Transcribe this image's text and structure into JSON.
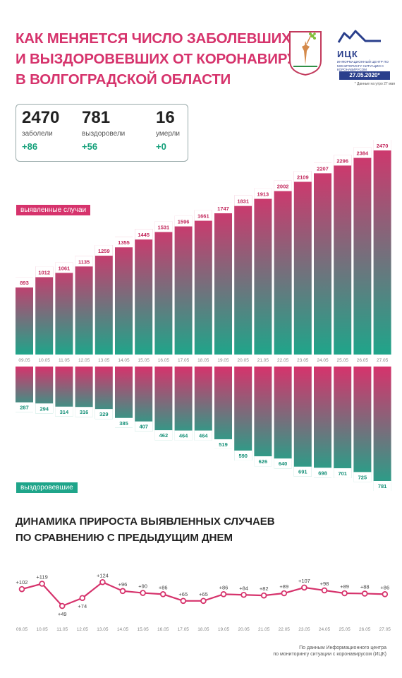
{
  "title_lines": [
    "КАК МЕНЯЕТСЯ ЧИСЛО ЗАБОЛЕВШИХ",
    "И ВЫЗДОРОВЕВШИХ ОТ КОРОНАВИРУСА",
    "В ВОЛГОГРАДСКОЙ ОБЛАСТИ"
  ],
  "logo": {
    "name": "ИЦК",
    "subtitle": "ИНФОРМАЦИОННЫЙ ЦЕНТР ПО МОНИТОРИНГУ СИТУАЦИИ С КОРОНАВИРУСОМ",
    "date": "27.05.2020*",
    "note": "* Данные на утро 27 мая"
  },
  "stats": [
    {
      "value": "2470",
      "label": "заболели",
      "delta": "+86"
    },
    {
      "value": "781",
      "label": "выздоровели",
      "delta": "+56"
    },
    {
      "value": "16",
      "label": "умерли",
      "delta": "+0"
    }
  ],
  "tags": {
    "cases": "выявленные случаи",
    "recovered": "выздоровевшие"
  },
  "chart2_title_lines": [
    "ДИНАМИКА ПРИРОСТА ВЫЯВЛЕННЫХ СЛУЧАЕВ",
    "ПО СРАВНЕНИЮ С ПРЕДЫДУЩИМ ДНЕМ"
  ],
  "source_lines": [
    "По данным Информационного центра",
    "по мониторингу ситуации с коронавирусом (ИЦК)"
  ],
  "colors": {
    "red": "#d6336c",
    "green": "#1fa58a",
    "line": "#d6336c",
    "dark": "#222222"
  },
  "chart_data": [
    {
      "type": "bar",
      "categories": [
        "09.05",
        "10.05",
        "11.05",
        "12.05",
        "13.05",
        "14.05",
        "15.05",
        "16.05",
        "17.05",
        "18.05",
        "19.05",
        "20.05",
        "21.05",
        "22.05",
        "23.05",
        "24.05",
        "25.05",
        "26.05",
        "27.05"
      ],
      "series": [
        {
          "name": "выявленные случаи",
          "values": [
            893,
            1012,
            1061,
            1135,
            1259,
            1355,
            1445,
            1531,
            1596,
            1661,
            1747,
            1831,
            1913,
            2002,
            2109,
            2207,
            2296,
            2384,
            2470
          ]
        },
        {
          "name": "выздоровевшие",
          "values": [
            287,
            294,
            314,
            316,
            329,
            385,
            407,
            462,
            464,
            464,
            519,
            590,
            626,
            640,
            691,
            698,
            701,
            725,
            781
          ]
        }
      ]
    },
    {
      "type": "line",
      "categories": [
        "09.05",
        "10.05",
        "11.05",
        "12.05",
        "13.05",
        "14.05",
        "15.05",
        "16.05",
        "17.05",
        "18.05",
        "19.05",
        "20.05",
        "21.05",
        "22.05",
        "23.05",
        "24.05",
        "25.05",
        "26.05",
        "27.05"
      ],
      "values": [
        102,
        119,
        49,
        74,
        124,
        96,
        90,
        86,
        65,
        65,
        86,
        84,
        82,
        89,
        107,
        98,
        89,
        88,
        86
      ],
      "labels": [
        "+102",
        "+119",
        "+49",
        "+74",
        "+124",
        "+96",
        "+90",
        "+86",
        "+65",
        "+65",
        "+86",
        "+84",
        "+82",
        "+89",
        "+107",
        "+98",
        "+89",
        "+88",
        "+86"
      ],
      "ylim": [
        40,
        130
      ]
    }
  ]
}
